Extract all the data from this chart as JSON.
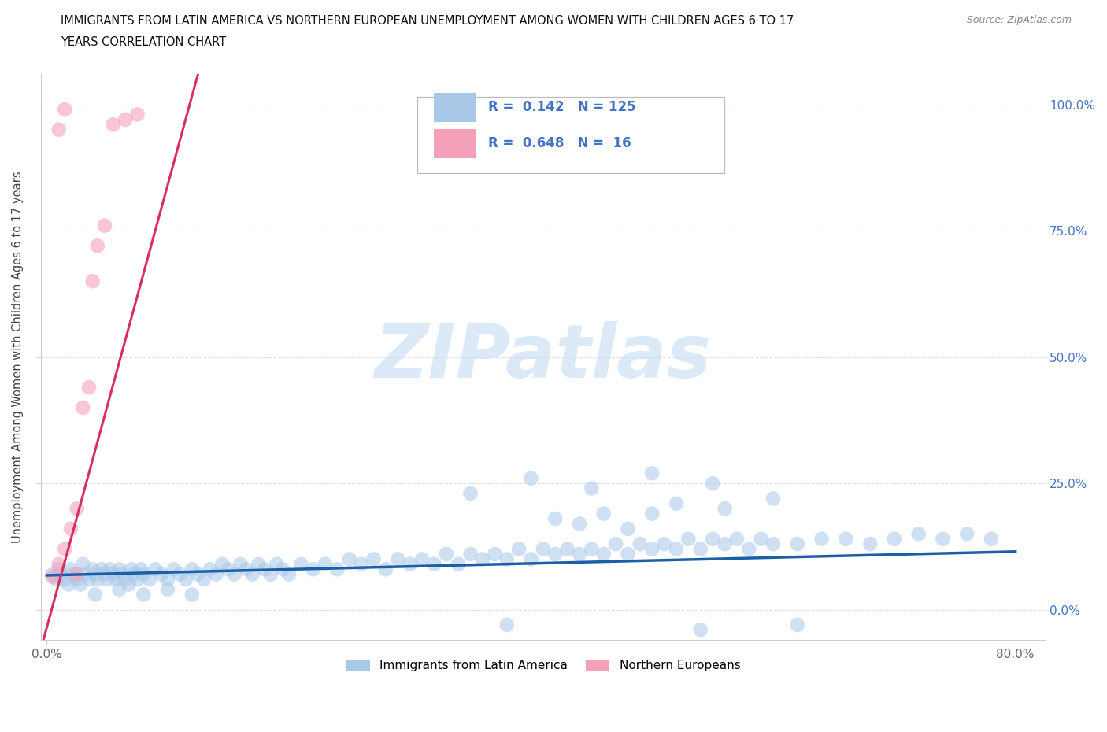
{
  "title_line1": "IMMIGRANTS FROM LATIN AMERICA VS NORTHERN EUROPEAN UNEMPLOYMENT AMONG WOMEN WITH CHILDREN AGES 6 TO 17",
  "title_line2": "YEARS CORRELATION CHART",
  "source": "Source: ZipAtlas.com",
  "ylabel": "Unemployment Among Women with Children Ages 6 to 17 years",
  "x_min": -0.005,
  "x_max": 0.825,
  "y_min": -0.06,
  "y_max": 1.06,
  "x_tick_pos": [
    0.0,
    0.8
  ],
  "x_tick_labels": [
    "0.0%",
    "80.0%"
  ],
  "y_ticks": [
    0.0,
    0.25,
    0.5,
    0.75,
    1.0
  ],
  "y_tick_labels_right": [
    "0.0%",
    "25.0%",
    "50.0%",
    "75.0%",
    "100.0%"
  ],
  "blue_color": "#a8c8e8",
  "pink_color": "#f4a0b8",
  "blue_line_color": "#1a5fa8",
  "pink_line_color": "#d63060",
  "R_blue": 0.142,
  "N_blue": 125,
  "R_pink": 0.648,
  "N_pink": 16,
  "watermark": "ZIPatlas",
  "watermark_color": "#c8dff2",
  "legend_label_blue": "Immigrants from Latin America",
  "legend_label_pink": "Northern Europeans",
  "grid_color": "#d8d8d8",
  "blue_trend_x0": 0.0,
  "blue_trend_y0": 0.068,
  "blue_trend_x1": 0.8,
  "blue_trend_y1": 0.115,
  "pink_trend_x0": -0.005,
  "pink_trend_y0": -0.08,
  "pink_trend_x1": 0.125,
  "pink_trend_y1": 1.06,
  "blue_x": [
    0.005,
    0.008,
    0.01,
    0.012,
    0.015,
    0.018,
    0.02,
    0.022,
    0.025,
    0.028,
    0.03,
    0.032,
    0.035,
    0.038,
    0.04,
    0.042,
    0.045,
    0.048,
    0.05,
    0.052,
    0.055,
    0.058,
    0.06,
    0.062,
    0.065,
    0.068,
    0.07,
    0.072,
    0.075,
    0.078,
    0.08,
    0.085,
    0.09,
    0.095,
    0.1,
    0.105,
    0.11,
    0.115,
    0.12,
    0.125,
    0.13,
    0.135,
    0.14,
    0.145,
    0.15,
    0.155,
    0.16,
    0.165,
    0.17,
    0.175,
    0.18,
    0.185,
    0.19,
    0.195,
    0.2,
    0.21,
    0.22,
    0.23,
    0.24,
    0.25,
    0.26,
    0.27,
    0.28,
    0.29,
    0.3,
    0.31,
    0.32,
    0.33,
    0.34,
    0.35,
    0.36,
    0.37,
    0.38,
    0.39,
    0.4,
    0.41,
    0.42,
    0.43,
    0.44,
    0.45,
    0.46,
    0.47,
    0.48,
    0.49,
    0.5,
    0.51,
    0.52,
    0.53,
    0.54,
    0.55,
    0.56,
    0.57,
    0.58,
    0.59,
    0.6,
    0.62,
    0.64,
    0.66,
    0.68,
    0.7,
    0.72,
    0.74,
    0.76,
    0.78,
    0.04,
    0.06,
    0.08,
    0.1,
    0.12,
    0.35,
    0.4,
    0.45,
    0.5,
    0.55,
    0.6,
    0.5,
    0.52,
    0.56,
    0.42,
    0.46,
    0.38,
    0.44,
    0.48,
    0.54,
    0.62
  ],
  "blue_y": [
    0.07,
    0.06,
    0.08,
    0.07,
    0.06,
    0.05,
    0.08,
    0.07,
    0.06,
    0.05,
    0.09,
    0.07,
    0.06,
    0.08,
    0.07,
    0.06,
    0.08,
    0.07,
    0.06,
    0.08,
    0.07,
    0.06,
    0.08,
    0.07,
    0.06,
    0.05,
    0.08,
    0.07,
    0.06,
    0.08,
    0.07,
    0.06,
    0.08,
    0.07,
    0.06,
    0.08,
    0.07,
    0.06,
    0.08,
    0.07,
    0.06,
    0.08,
    0.07,
    0.09,
    0.08,
    0.07,
    0.09,
    0.08,
    0.07,
    0.09,
    0.08,
    0.07,
    0.09,
    0.08,
    0.07,
    0.09,
    0.08,
    0.09,
    0.08,
    0.1,
    0.09,
    0.1,
    0.08,
    0.1,
    0.09,
    0.1,
    0.09,
    0.11,
    0.09,
    0.11,
    0.1,
    0.11,
    0.1,
    0.12,
    0.1,
    0.12,
    0.11,
    0.12,
    0.11,
    0.12,
    0.11,
    0.13,
    0.11,
    0.13,
    0.12,
    0.13,
    0.12,
    0.14,
    0.12,
    0.14,
    0.13,
    0.14,
    0.12,
    0.14,
    0.13,
    0.13,
    0.14,
    0.14,
    0.13,
    0.14,
    0.15,
    0.14,
    0.15,
    0.14,
    0.03,
    0.04,
    0.03,
    0.04,
    0.03,
    0.23,
    0.26,
    0.24,
    0.27,
    0.25,
    0.22,
    0.19,
    0.21,
    0.2,
    0.18,
    0.19,
    -0.03,
    0.17,
    0.16,
    -0.04,
    -0.03
  ],
  "pink_x": [
    0.005,
    0.01,
    0.015,
    0.02,
    0.025,
    0.03,
    0.038,
    0.042,
    0.048,
    0.055,
    0.065,
    0.075,
    0.035,
    0.025,
    0.015,
    0.01
  ],
  "pink_y": [
    0.065,
    0.09,
    0.12,
    0.16,
    0.2,
    0.4,
    0.65,
    0.72,
    0.76,
    0.96,
    0.97,
    0.98,
    0.44,
    0.07,
    0.99,
    0.95
  ]
}
